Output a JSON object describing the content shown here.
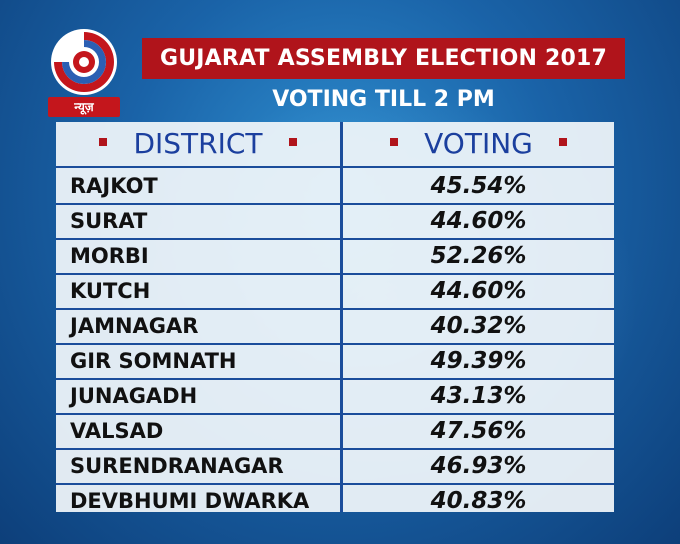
{
  "brand": {
    "badge_text": "न्यूज़",
    "logo_icon": "dd-news-logo-icon",
    "colors": {
      "accent_red": "#b0141b",
      "navy_text": "#1b3f9e",
      "logo_blue": "#2b5fb3"
    }
  },
  "header": {
    "title": "GUJARAT ASSEMBLY ELECTION 2017",
    "subtitle": "VOTING TILL 2 PM"
  },
  "table": {
    "columns": [
      "DISTRICT",
      "VOTING"
    ],
    "rows": [
      {
        "district": "RAJKOT",
        "voting": "45.54%"
      },
      {
        "district": "SURAT",
        "voting": "44.60%"
      },
      {
        "district": "MORBI",
        "voting": "52.26%"
      },
      {
        "district": "KUTCH",
        "voting": "44.60%"
      },
      {
        "district": "JAMNAGAR",
        "voting": "40.32%"
      },
      {
        "district": "GIR SOMNATH",
        "voting": "49.39%"
      },
      {
        "district": "JUNAGADH",
        "voting": "43.13%"
      },
      {
        "district": "VALSAD",
        "voting": "47.56%"
      },
      {
        "district": "SURENDRANAGAR",
        "voting": "46.93%"
      },
      {
        "district": "DEVBHUMI DWARKA",
        "voting": "40.83%"
      }
    ]
  }
}
